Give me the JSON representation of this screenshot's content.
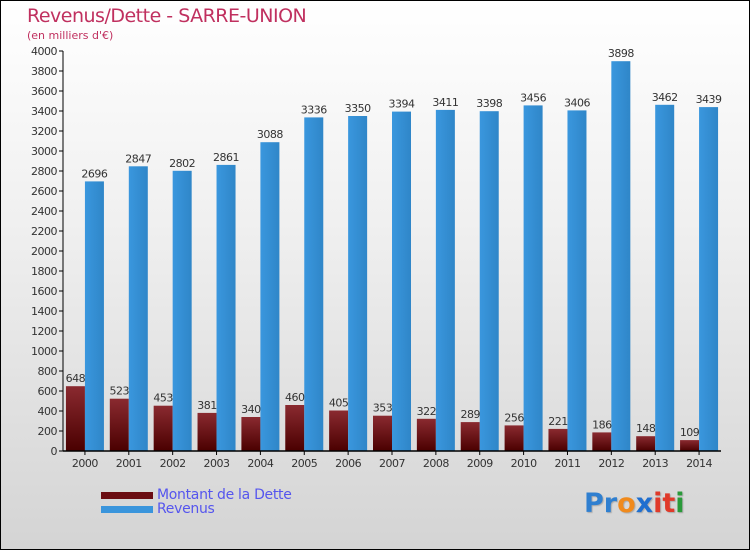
{
  "chart_data": {
    "type": "bar",
    "title": "Revenus/Dette - SARRE-UNION",
    "subtitle": "(en milliers d'€)",
    "categories": [
      "2000",
      "2001",
      "2002",
      "2003",
      "2004",
      "2005",
      "2006",
      "2007",
      "2008",
      "2009",
      "2010",
      "2011",
      "2012",
      "2013",
      "2014"
    ],
    "series": [
      {
        "name": "Montant de la Dette",
        "color": "#6b0d12",
        "values": [
          648,
          523,
          453,
          381,
          340,
          460,
          405,
          353,
          322,
          289,
          256,
          221,
          186,
          148,
          109
        ]
      },
      {
        "name": "Revenus",
        "color": "#3a95dc",
        "values": [
          2696,
          2847,
          2802,
          2861,
          3088,
          3336,
          3350,
          3394,
          3411,
          3398,
          3456,
          3406,
          3898,
          3462,
          3439
        ]
      }
    ],
    "ylim": [
      0,
      4000
    ],
    "ytick_step": 200,
    "grid": false,
    "legend_position": "bottom-left"
  },
  "logo": {
    "letters": [
      "P",
      "r",
      "o",
      "x",
      "i",
      "t",
      "i"
    ],
    "colors": [
      "#2f7fd0",
      "#2f7fd0",
      "#f08a1c",
      "#1f6fd0",
      "#e03a2a",
      "#e03a2a",
      "#2a9a3a"
    ]
  }
}
